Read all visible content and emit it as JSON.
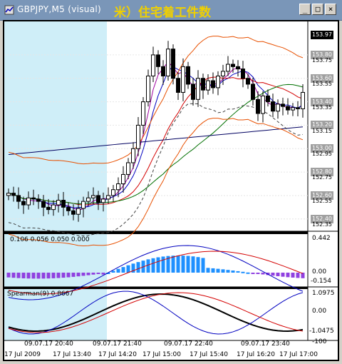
{
  "window": {
    "title": "GBPJPY,M5 (visual)",
    "overlay_title": "米）住宅着工件数",
    "minimize_label": "_",
    "maximize_label": "□",
    "close_label": "×"
  },
  "price_axis": {
    "labels": [
      "153.80",
      "153.75",
      "153.60",
      "153.55",
      "153.40",
      "153.35",
      "153.20",
      "153.15",
      "153.00",
      "152.95",
      "152.80",
      "152.75",
      "152.60",
      "152.55",
      "152.40",
      "152.35"
    ],
    "current_price": "153.97",
    "boxed": [
      "153.80",
      "153.60",
      "153.40",
      "153.20",
      "153.00",
      "152.80",
      "152.60",
      "152.40"
    ]
  },
  "indicator1": {
    "header": "0.106 0.056 0.050 0.000",
    "axis_top": "0.442",
    "axis_mid": "0.00",
    "axis_bot": "-0.154"
  },
  "indicator2": {
    "header": "Spearman(9) 0.8667",
    "axis_top": "1.0975",
    "axis_mid": "0.00",
    "axis_bot": "-1.0475",
    "axis_min": "-100"
  },
  "time_axis": {
    "top_labels": [
      "09.07.17 20:40",
      "09.07.17 21:40",
      "09.07.17 22:40",
      "09.07.17 23:40"
    ],
    "bottom_labels": [
      "17 Jul 2009",
      "17 Jul 13:40",
      "17 Jul 14:20",
      "17 Jul 15:00",
      "17 Jul 15:40",
      "17 Jul 16:20",
      "17 Jul 17:00"
    ]
  },
  "colors": {
    "chart_bg": "#ffffff",
    "highlight_bg": "#cfeef8",
    "bull_candle": "#ffffff",
    "bear_candle": "#000000",
    "ma_red": "#d40000",
    "ma_blue": "#0000c0",
    "ma_green": "#007000",
    "ma_navy": "#000060",
    "band_orange": "#e85000",
    "ma_magenta": "#a000a0",
    "ma_dashed": "#404040",
    "hist_blue": "#1e90ff",
    "hist_purple": "#9040e0"
  }
}
